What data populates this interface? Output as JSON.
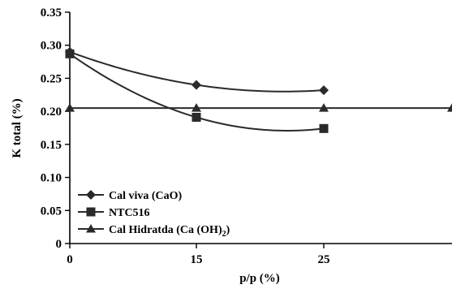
{
  "chart_data": {
    "type": "line",
    "title": "",
    "xlabel": "p/p (%)",
    "ylabel": "K total (%)",
    "x_ticks": [
      0,
      15,
      25
    ],
    "y_ticks": [
      "0",
      "0.05",
      "0.10",
      "0.15",
      "0.20",
      "0.25",
      "0.30",
      "0.35"
    ],
    "xlim": [
      0,
      44
    ],
    "ylim": [
      0,
      0.35
    ],
    "grid": false,
    "legend_position": "bottom-left",
    "series": [
      {
        "name": "Cal viva (CaO)",
        "marker": "diamond",
        "x": [
          0,
          15,
          25
        ],
        "y": [
          0.29,
          0.24,
          0.232
        ],
        "fit": "curve"
      },
      {
        "name": "NTC516",
        "marker": "square",
        "x": [
          0,
          15,
          25
        ],
        "y": [
          0.287,
          0.191,
          0.174
        ],
        "fit": "curve"
      },
      {
        "name": "Cal Hidratda (Ca (OH)₂)",
        "name_main": "Cal Hidratda (Ca (OH)",
        "name_sub": "2",
        "name_tail": ")",
        "marker": "triangle",
        "x": [
          0,
          15,
          25,
          44
        ],
        "y": [
          0.205,
          0.205,
          0.205,
          0.205
        ],
        "fit": "flat"
      }
    ],
    "colors": {
      "line": "#2a2a2a",
      "marker": "#2a2a2a"
    }
  }
}
